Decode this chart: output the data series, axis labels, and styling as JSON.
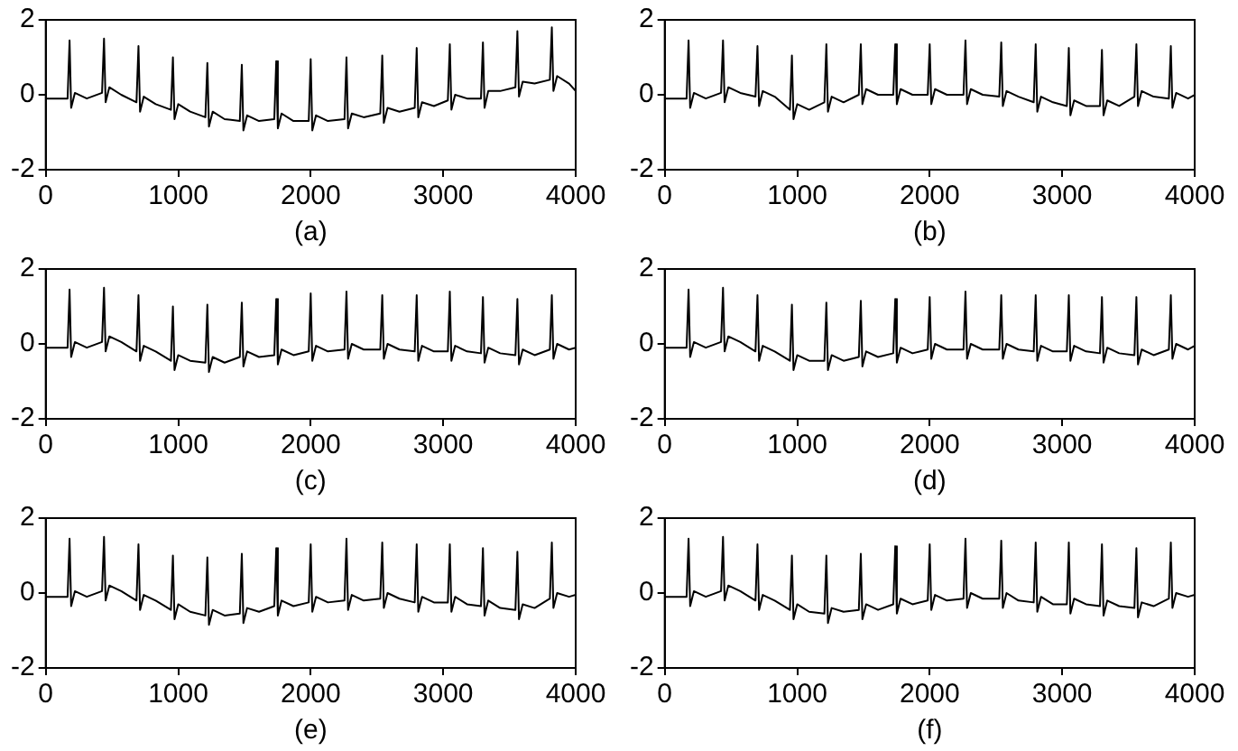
{
  "chart_data": [
    {
      "type": "line",
      "xlabel": "(a)",
      "xlim": [
        0,
        4000
      ],
      "xticks": [
        0,
        1000,
        2000,
        3000,
        4000
      ],
      "ylim": [
        -2,
        2
      ],
      "yticks": [
        -2,
        0,
        2
      ],
      "grid": false,
      "color": "#000000",
      "x": [
        0,
        165,
        180,
        192,
        220,
        310,
        425,
        440,
        452,
        480,
        570,
        685,
        700,
        712,
        740,
        830,
        945,
        960,
        972,
        1000,
        1090,
        1205,
        1220,
        1232,
        1260,
        1350,
        1465,
        1480,
        1492,
        1520,
        1610,
        1725,
        1740,
        1752,
        1780,
        1870,
        1985,
        2000,
        2012,
        2040,
        2130,
        2255,
        2270,
        2282,
        2310,
        2400,
        2525,
        2540,
        2552,
        2580,
        2670,
        2785,
        2800,
        2812,
        2840,
        2930,
        3035,
        3050,
        3062,
        3090,
        3180,
        3285,
        3300,
        3312,
        3340,
        3430,
        3545,
        3560,
        3572,
        3600,
        3690,
        3805,
        3820,
        3832,
        3860,
        3950,
        4000
      ],
      "values": [
        -0.1,
        -0.1,
        1.45,
        -0.35,
        0.05,
        -0.1,
        0.05,
        1.5,
        -0.2,
        0.2,
        0.0,
        -0.2,
        1.3,
        -0.45,
        -0.05,
        -0.25,
        -0.4,
        1.0,
        -0.65,
        -0.25,
        -0.45,
        -0.6,
        0.85,
        -0.85,
        -0.45,
        -0.65,
        -0.7,
        0.8,
        -0.95,
        -0.55,
        -0.7,
        -0.65,
        0.9,
        -0.9,
        -0.5,
        -0.7,
        -0.7,
        0.95,
        -0.95,
        -0.55,
        -0.7,
        -0.65,
        1.0,
        -0.9,
        -0.5,
        -0.6,
        -0.5,
        1.05,
        -0.75,
        -0.35,
        -0.45,
        -0.35,
        1.25,
        -0.6,
        -0.2,
        -0.3,
        -0.15,
        1.35,
        -0.4,
        0.0,
        -0.1,
        -0.1,
        1.4,
        -0.35,
        0.1,
        0.1,
        0.2,
        1.7,
        -0.05,
        0.35,
        0.3,
        0.4,
        1.8,
        0.1,
        0.5,
        0.3,
        0.1
      ]
    },
    {
      "type": "line",
      "xlabel": "(b)",
      "xlim": [
        0,
        4000
      ],
      "xticks": [
        0,
        1000,
        2000,
        3000,
        4000
      ],
      "ylim": [
        -2,
        2
      ],
      "yticks": [
        -2,
        0,
        2
      ],
      "grid": false,
      "color": "#000000",
      "x": [
        0,
        165,
        180,
        192,
        220,
        310,
        425,
        440,
        452,
        480,
        570,
        685,
        700,
        712,
        740,
        830,
        945,
        960,
        972,
        1000,
        1090,
        1205,
        1220,
        1232,
        1260,
        1350,
        1465,
        1480,
        1492,
        1520,
        1610,
        1725,
        1740,
        1752,
        1780,
        1870,
        1985,
        2000,
        2012,
        2040,
        2130,
        2255,
        2270,
        2282,
        2310,
        2400,
        2525,
        2540,
        2552,
        2580,
        2670,
        2785,
        2800,
        2812,
        2840,
        2930,
        3035,
        3050,
        3062,
        3090,
        3180,
        3285,
        3300,
        3312,
        3340,
        3430,
        3545,
        3560,
        3572,
        3600,
        3690,
        3805,
        3820,
        3832,
        3860,
        3950,
        4000
      ],
      "values": [
        -0.1,
        -0.1,
        1.45,
        -0.35,
        0.05,
        -0.1,
        0.05,
        1.45,
        -0.2,
        0.2,
        0.05,
        -0.05,
        1.3,
        -0.3,
        0.1,
        -0.05,
        -0.4,
        1.05,
        -0.65,
        -0.25,
        -0.4,
        -0.2,
        1.35,
        -0.45,
        -0.05,
        -0.2,
        0.0,
        1.35,
        -0.25,
        0.15,
        0.0,
        0.0,
        1.35,
        -0.25,
        0.15,
        0.0,
        0.0,
        1.35,
        -0.25,
        0.15,
        0.0,
        0.0,
        1.45,
        -0.25,
        0.15,
        0.0,
        -0.05,
        1.4,
        -0.3,
        0.1,
        -0.05,
        -0.2,
        1.35,
        -0.45,
        -0.05,
        -0.2,
        -0.3,
        1.25,
        -0.55,
        -0.15,
        -0.3,
        -0.3,
        1.2,
        -0.55,
        -0.15,
        -0.3,
        -0.05,
        1.35,
        -0.3,
        0.1,
        -0.05,
        -0.1,
        1.3,
        -0.35,
        0.05,
        -0.1,
        0.0
      ]
    },
    {
      "type": "line",
      "xlabel": "(c)",
      "xlim": [
        0,
        4000
      ],
      "xticks": [
        0,
        1000,
        2000,
        3000,
        4000
      ],
      "ylim": [
        -2,
        2
      ],
      "yticks": [
        -2,
        0,
        2
      ],
      "grid": false,
      "color": "#000000",
      "x": [
        0,
        165,
        180,
        192,
        220,
        310,
        425,
        440,
        452,
        480,
        570,
        685,
        700,
        712,
        740,
        830,
        945,
        960,
        972,
        1000,
        1090,
        1205,
        1220,
        1232,
        1260,
        1350,
        1465,
        1480,
        1492,
        1520,
        1610,
        1725,
        1740,
        1752,
        1780,
        1870,
        1985,
        2000,
        2012,
        2040,
        2130,
        2255,
        2270,
        2282,
        2310,
        2400,
        2525,
        2540,
        2552,
        2580,
        2670,
        2785,
        2800,
        2812,
        2840,
        2930,
        3035,
        3050,
        3062,
        3090,
        3180,
        3285,
        3300,
        3312,
        3340,
        3430,
        3545,
        3560,
        3572,
        3600,
        3690,
        3805,
        3820,
        3832,
        3860,
        3950,
        4000
      ],
      "values": [
        -0.1,
        -0.1,
        1.45,
        -0.35,
        0.05,
        -0.1,
        0.05,
        1.5,
        -0.2,
        0.2,
        0.05,
        -0.2,
        1.3,
        -0.45,
        -0.05,
        -0.2,
        -0.45,
        1.0,
        -0.7,
        -0.3,
        -0.45,
        -0.5,
        1.05,
        -0.75,
        -0.35,
        -0.5,
        -0.35,
        1.1,
        -0.6,
        -0.2,
        -0.35,
        -0.3,
        1.2,
        -0.55,
        -0.15,
        -0.3,
        -0.2,
        1.35,
        -0.45,
        -0.05,
        -0.2,
        -0.15,
        1.4,
        -0.4,
        0.0,
        -0.15,
        -0.15,
        1.3,
        -0.4,
        0.0,
        -0.15,
        -0.2,
        1.3,
        -0.45,
        -0.05,
        -0.2,
        -0.2,
        1.4,
        -0.45,
        -0.05,
        -0.2,
        -0.25,
        1.25,
        -0.5,
        -0.1,
        -0.25,
        -0.3,
        1.2,
        -0.55,
        -0.15,
        -0.3,
        -0.15,
        1.3,
        -0.4,
        0.0,
        -0.15,
        -0.1
      ]
    },
    {
      "type": "line",
      "xlabel": "(d)",
      "xlim": [
        0,
        4000
      ],
      "xticks": [
        0,
        1000,
        2000,
        3000,
        4000
      ],
      "ylim": [
        -2,
        2
      ],
      "yticks": [
        -2,
        0,
        2
      ],
      "grid": false,
      "color": "#000000",
      "x": [
        0,
        165,
        180,
        192,
        220,
        310,
        425,
        440,
        452,
        480,
        570,
        685,
        700,
        712,
        740,
        830,
        945,
        960,
        972,
        1000,
        1090,
        1205,
        1220,
        1232,
        1260,
        1350,
        1465,
        1480,
        1492,
        1520,
        1610,
        1725,
        1740,
        1752,
        1780,
        1870,
        1985,
        2000,
        2012,
        2040,
        2130,
        2255,
        2270,
        2282,
        2310,
        2400,
        2525,
        2540,
        2552,
        2580,
        2670,
        2785,
        2800,
        2812,
        2840,
        2930,
        3035,
        3050,
        3062,
        3090,
        3180,
        3285,
        3300,
        3312,
        3340,
        3430,
        3545,
        3560,
        3572,
        3600,
        3690,
        3805,
        3820,
        3832,
        3860,
        3950,
        4000
      ],
      "values": [
        -0.1,
        -0.1,
        1.45,
        -0.35,
        0.05,
        -0.1,
        0.05,
        1.5,
        -0.2,
        0.2,
        0.05,
        -0.2,
        1.3,
        -0.45,
        -0.05,
        -0.2,
        -0.45,
        1.05,
        -0.7,
        -0.3,
        -0.45,
        -0.45,
        1.1,
        -0.7,
        -0.3,
        -0.45,
        -0.35,
        1.15,
        -0.6,
        -0.2,
        -0.35,
        -0.25,
        1.2,
        -0.5,
        -0.1,
        -0.25,
        -0.15,
        1.25,
        -0.4,
        0.0,
        -0.15,
        -0.15,
        1.4,
        -0.4,
        0.0,
        -0.15,
        -0.15,
        1.3,
        -0.4,
        0.0,
        -0.15,
        -0.2,
        1.3,
        -0.45,
        -0.05,
        -0.2,
        -0.2,
        1.3,
        -0.45,
        -0.05,
        -0.2,
        -0.25,
        1.25,
        -0.5,
        -0.1,
        -0.25,
        -0.3,
        1.25,
        -0.55,
        -0.15,
        -0.3,
        -0.15,
        1.3,
        -0.4,
        0.0,
        -0.15,
        -0.05
      ]
    },
    {
      "type": "line",
      "xlabel": "(e)",
      "xlim": [
        0,
        4000
      ],
      "xticks": [
        0,
        1000,
        2000,
        3000,
        4000
      ],
      "ylim": [
        -2,
        2
      ],
      "yticks": [
        -2,
        0,
        2
      ],
      "grid": false,
      "color": "#000000",
      "x": [
        0,
        165,
        180,
        192,
        220,
        310,
        425,
        440,
        452,
        480,
        570,
        685,
        700,
        712,
        740,
        830,
        945,
        960,
        972,
        1000,
        1090,
        1205,
        1220,
        1232,
        1260,
        1350,
        1465,
        1480,
        1492,
        1520,
        1610,
        1725,
        1740,
        1752,
        1780,
        1870,
        1985,
        2000,
        2012,
        2040,
        2130,
        2255,
        2270,
        2282,
        2310,
        2400,
        2525,
        2540,
        2552,
        2580,
        2670,
        2785,
        2800,
        2812,
        2840,
        2930,
        3035,
        3050,
        3062,
        3090,
        3180,
        3285,
        3300,
        3312,
        3340,
        3430,
        3545,
        3560,
        3572,
        3600,
        3690,
        3805,
        3820,
        3832,
        3860,
        3950,
        4000
      ],
      "values": [
        -0.1,
        -0.1,
        1.45,
        -0.35,
        0.05,
        -0.1,
        0.05,
        1.5,
        -0.2,
        0.2,
        0.05,
        -0.2,
        1.3,
        -0.45,
        -0.05,
        -0.2,
        -0.45,
        1.0,
        -0.7,
        -0.3,
        -0.5,
        -0.6,
        0.95,
        -0.85,
        -0.45,
        -0.6,
        -0.55,
        1.05,
        -0.8,
        -0.4,
        -0.5,
        -0.35,
        1.2,
        -0.6,
        -0.2,
        -0.35,
        -0.25,
        1.3,
        -0.5,
        -0.1,
        -0.25,
        -0.2,
        1.45,
        -0.45,
        -0.05,
        -0.2,
        -0.15,
        1.35,
        -0.4,
        0.0,
        -0.15,
        -0.25,
        1.3,
        -0.5,
        -0.1,
        -0.25,
        -0.25,
        1.3,
        -0.5,
        -0.1,
        -0.3,
        -0.35,
        1.2,
        -0.6,
        -0.2,
        -0.4,
        -0.45,
        1.1,
        -0.7,
        -0.3,
        -0.4,
        -0.15,
        1.35,
        -0.4,
        0.0,
        -0.1,
        -0.05
      ]
    },
    {
      "type": "line",
      "xlabel": "(f)",
      "xlim": [
        0,
        4000
      ],
      "xticks": [
        0,
        1000,
        2000,
        3000,
        4000
      ],
      "ylim": [
        -2,
        2
      ],
      "yticks": [
        -2,
        0,
        2
      ],
      "grid": false,
      "color": "#000000",
      "x": [
        0,
        165,
        180,
        192,
        220,
        310,
        425,
        440,
        452,
        480,
        570,
        685,
        700,
        712,
        740,
        830,
        945,
        960,
        972,
        1000,
        1090,
        1205,
        1220,
        1232,
        1260,
        1350,
        1465,
        1480,
        1492,
        1520,
        1610,
        1725,
        1740,
        1752,
        1780,
        1870,
        1985,
        2000,
        2012,
        2040,
        2130,
        2255,
        2270,
        2282,
        2310,
        2400,
        2525,
        2540,
        2552,
        2580,
        2670,
        2785,
        2800,
        2812,
        2840,
        2930,
        3035,
        3050,
        3062,
        3090,
        3180,
        3285,
        3300,
        3312,
        3340,
        3430,
        3545,
        3560,
        3572,
        3600,
        3690,
        3805,
        3820,
        3832,
        3860,
        3950,
        4000
      ],
      "values": [
        -0.1,
        -0.1,
        1.45,
        -0.35,
        0.05,
        -0.1,
        0.05,
        1.5,
        -0.2,
        0.2,
        0.05,
        -0.2,
        1.3,
        -0.45,
        -0.05,
        -0.2,
        -0.45,
        1.0,
        -0.7,
        -0.3,
        -0.5,
        -0.55,
        1.0,
        -0.8,
        -0.4,
        -0.5,
        -0.45,
        1.05,
        -0.7,
        -0.3,
        -0.45,
        -0.3,
        1.25,
        -0.55,
        -0.15,
        -0.3,
        -0.2,
        1.3,
        -0.45,
        -0.05,
        -0.2,
        -0.15,
        1.45,
        -0.4,
        0.0,
        -0.15,
        -0.15,
        1.4,
        -0.4,
        0.0,
        -0.2,
        -0.25,
        1.35,
        -0.5,
        -0.1,
        -0.3,
        -0.3,
        1.35,
        -0.55,
        -0.15,
        -0.3,
        -0.35,
        1.3,
        -0.6,
        -0.2,
        -0.35,
        -0.4,
        1.2,
        -0.65,
        -0.25,
        -0.35,
        -0.15,
        1.35,
        -0.4,
        0.0,
        -0.1,
        -0.05
      ]
    }
  ]
}
